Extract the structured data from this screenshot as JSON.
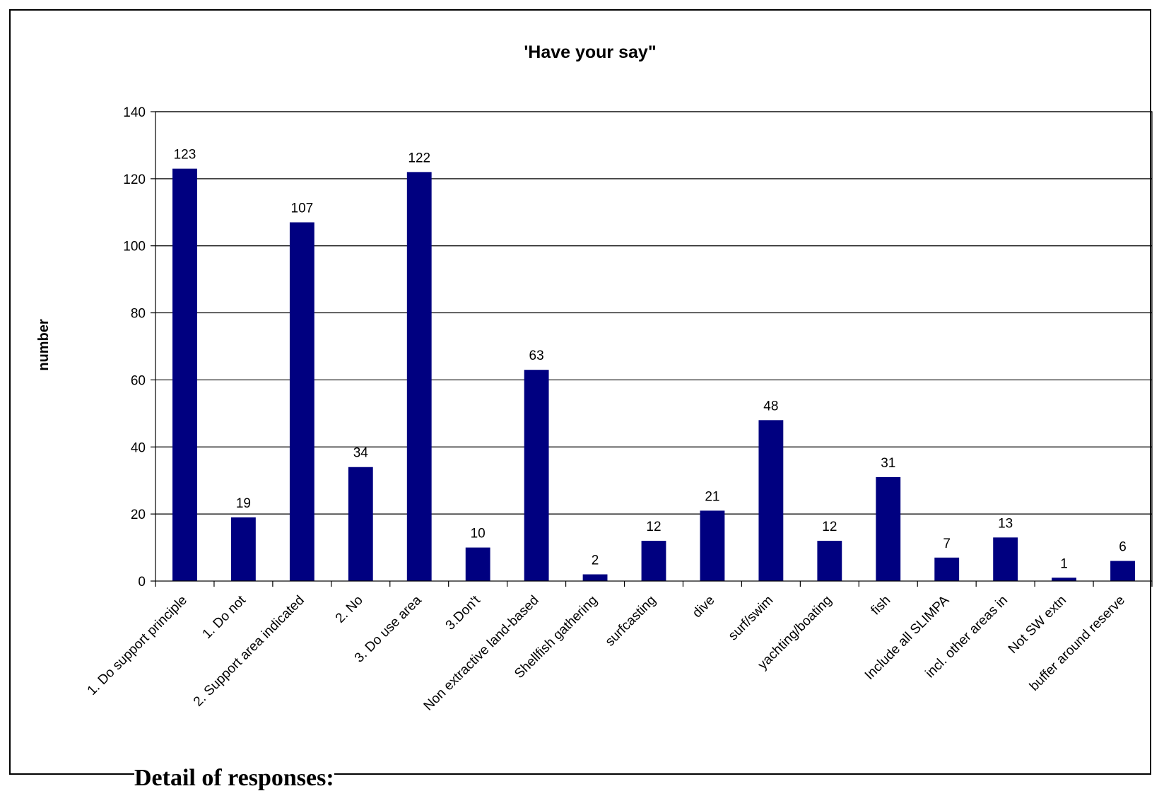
{
  "page": {
    "footer_heading": "Detail of responses:"
  },
  "colors": {
    "bar": "#000080",
    "grid": "#000000",
    "frame": "#000000",
    "text": "#000000"
  },
  "chart_data": {
    "type": "bar",
    "title": "'Have your say\"",
    "xlabel": "",
    "ylabel": "number",
    "ylim": [
      0,
      140
    ],
    "yticks": [
      0,
      20,
      40,
      60,
      80,
      100,
      120,
      140
    ],
    "grid": true,
    "legend": "none",
    "categories": [
      "1. Do support principle",
      "1. Do not",
      "2. Support area indicated",
      "2. No",
      "3. Do use area",
      "3.Don't",
      "Non extractive land-based",
      "Shellfish gathering",
      "surfcasting",
      "dive",
      "surf/swim",
      "yachting/boating",
      "fish",
      "Include all SLIMPA",
      "incl. other areas in",
      "Not SW extn",
      "buffer around reserve"
    ],
    "values": [
      123,
      19,
      107,
      34,
      122,
      10,
      63,
      2,
      12,
      21,
      48,
      12,
      31,
      7,
      13,
      1,
      6
    ]
  }
}
